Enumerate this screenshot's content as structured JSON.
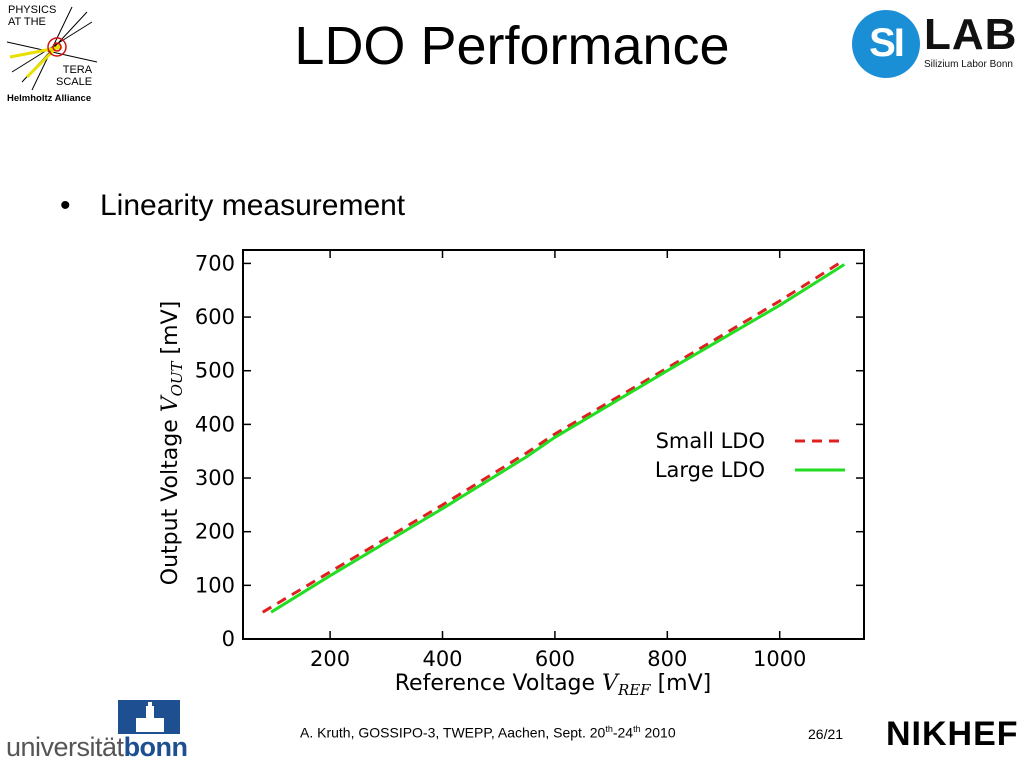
{
  "header": {
    "title": "LDO Performance",
    "logo_left": {
      "line1": "PHYSICS",
      "line2": "AT THE",
      "line3": "TERA",
      "line4": "SCALE",
      "line5": "Helmholtz Alliance"
    },
    "logo_right": {
      "mark": "SI",
      "word": "LAB",
      "subtitle": "Silizium Labor Bonn",
      "color": "#1a8fd6"
    }
  },
  "body": {
    "bullet_symbol": "•",
    "bullet_text": "Linearity measurement"
  },
  "chart_data": {
    "type": "line",
    "xlabel": "Reference Voltage V_REF [mV]",
    "ylabel": "Output Voltage V_OUT [mV]",
    "xlim": [
      45,
      1150
    ],
    "ylim": [
      0,
      725
    ],
    "xticks": [
      200,
      400,
      600,
      800,
      1000
    ],
    "yticks": [
      0,
      100,
      200,
      300,
      400,
      500,
      600,
      700
    ],
    "grid": false,
    "legend_position": "right",
    "series": [
      {
        "name": "Small LDO",
        "style": "dashed",
        "color": "#e02020",
        "x": [
          80,
          200,
          400,
          550,
          600,
          800,
          1000,
          1110
        ],
        "y": [
          50,
          125,
          250,
          347,
          382,
          505,
          630,
          703
        ]
      },
      {
        "name": "Large LDO",
        "style": "solid",
        "color": "#22dd22",
        "x": [
          95,
          200,
          400,
          550,
          600,
          800,
          1000,
          1115
        ],
        "y": [
          50,
          118,
          243,
          340,
          376,
          500,
          622,
          698
        ]
      }
    ]
  },
  "footer": {
    "credit": "A. Kruth, GOSSIPO-3, TWEPP, Aachen, Sept. 20",
    "sup1": "th",
    "dash": "-24",
    "sup2": "th",
    "year": " 2010",
    "page": "26/21",
    "uni_logo_prefix": "universität",
    "uni_logo_bold": "bonn",
    "nikhef": "NIKHEF"
  }
}
